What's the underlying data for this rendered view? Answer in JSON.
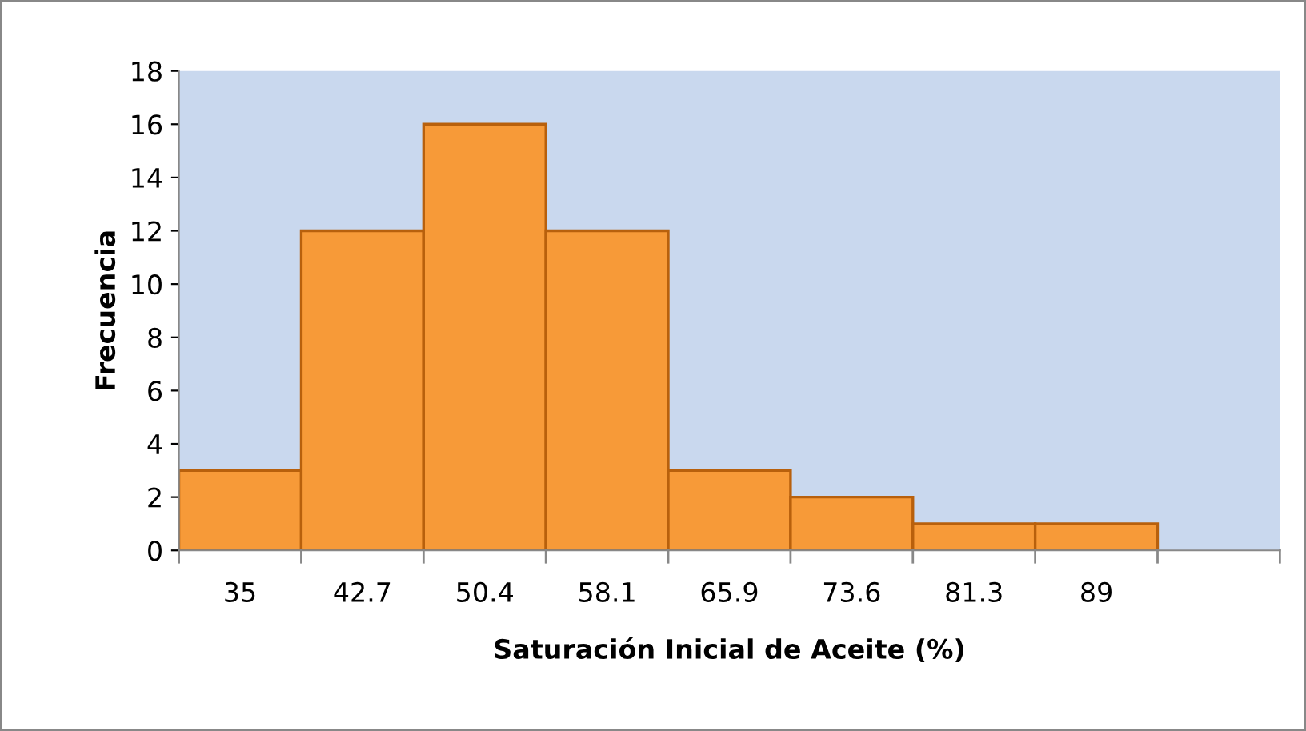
{
  "chart_data": {
    "type": "bar",
    "xlabel": "Saturación Inicial de Aceite (%)",
    "ylabel": "Frecuencia",
    "categories": [
      "35",
      "42.7",
      "50.4",
      "58.1",
      "65.9",
      "73.6",
      "81.3",
      "89",
      null
    ],
    "values": [
      3,
      12,
      16,
      12,
      3,
      2,
      1,
      1,
      null
    ],
    "color": "#f79a38",
    "ylim": [
      0,
      18
    ],
    "yticks": [
      0,
      2,
      4,
      6,
      8,
      10,
      12,
      14,
      16,
      18
    ],
    "grid": false,
    "legend": false
  }
}
